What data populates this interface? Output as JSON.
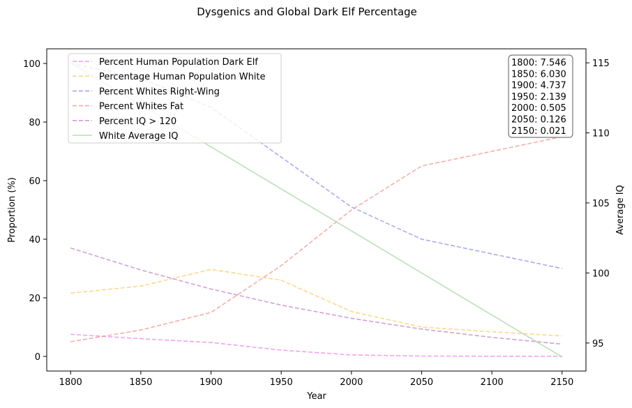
{
  "chart_data": {
    "type": "line",
    "title": "Dysgenics and Global Dark Elf Percentage",
    "xlabel": "Year",
    "ylabel_left": "Proportion (%)",
    "ylabel_right": "Average IQ",
    "x": [
      1800,
      1850,
      1900,
      1950,
      2000,
      2050,
      2100,
      2150
    ],
    "x_ticks": [
      "1800",
      "1850",
      "1900",
      "1950",
      "2000",
      "2050",
      "2100",
      "2150"
    ],
    "xlim": [
      1783,
      2167
    ],
    "ylim_left": [
      -5,
      105
    ],
    "y_ticks_left": [
      "0",
      "20",
      "40",
      "60",
      "80",
      "100"
    ],
    "ylim_right": [
      93,
      116
    ],
    "y_ticks_right": [
      "95",
      "100",
      "105",
      "110",
      "115"
    ],
    "legend_position": "upper-left",
    "series": [
      {
        "name": "Percent Human Population Dark Elf",
        "axis": "left",
        "style": "dashed",
        "color": "#ee82ee",
        "values": [
          7.546,
          6.03,
          4.737,
          2.139,
          0.505,
          0.126,
          0.05,
          0.021
        ]
      },
      {
        "name": "Percentage Human Population White",
        "axis": "left",
        "style": "dashed",
        "color": "#ffc966",
        "values": [
          21.6,
          24,
          29.7,
          26,
          15.3,
          10,
          8.4,
          7
        ]
      },
      {
        "name": "Percent Whites Right-Wing",
        "axis": "left",
        "style": "dashed",
        "color": "#8c8cf0",
        "values": [
          100,
          95,
          85,
          68,
          51,
          40,
          35,
          30
        ]
      },
      {
        "name": "Percent Whites Fat",
        "axis": "left",
        "style": "dashed",
        "color": "#f4918a",
        "values": [
          5,
          9,
          15,
          31,
          50,
          65,
          70,
          75
        ]
      },
      {
        "name": "Percent IQ > 120",
        "axis": "left",
        "style": "dashed",
        "color": "#c77fc7",
        "values": [
          37,
          29.5,
          23,
          17.5,
          13,
          9.3,
          6.5,
          4.2
        ]
      },
      {
        "name": "White Average IQ",
        "axis": "right",
        "style": "solid",
        "color": "#a3d6a3",
        "values": [
          115,
          112,
          109,
          106,
          103,
          100,
          97,
          94
        ]
      }
    ],
    "annotation": [
      "1800: 7.546",
      "1850: 6.030",
      "1900: 4.737",
      "1950: 2.139",
      "2000: 0.505",
      "2050: 0.126",
      "2150: 0.021"
    ]
  }
}
